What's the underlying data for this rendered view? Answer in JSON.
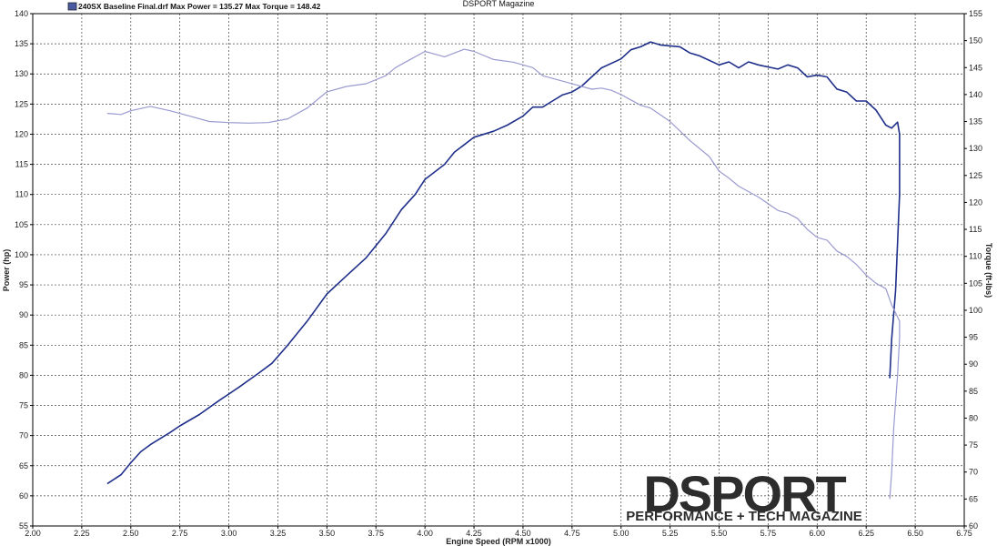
{
  "chart_data": {
    "type": "line",
    "title": "DSPORT Magazine",
    "legend_text": "240SX Baseline Final.drf Max Power = 135.27 Max Torque = 148.42",
    "legend_placement": "top-left",
    "xlabel": "Engine Speed (RPM x1000)",
    "ylabel": "Power (hp)",
    "y2label": "Torque (ft-lbs)",
    "xlim": [
      2.0,
      6.75
    ],
    "ylim": [
      55,
      140
    ],
    "y2lim": [
      60,
      155
    ],
    "x_ticks": [
      "2.00",
      "2.25",
      "2.50",
      "2.75",
      "3.00",
      "3.25",
      "3.50",
      "3.75",
      "4.00",
      "4.25",
      "4.50",
      "4.75",
      "5.00",
      "5.25",
      "5.50",
      "5.75",
      "6.00",
      "6.25",
      "6.50",
      "6.75"
    ],
    "y_ticks": [
      "55",
      "60",
      "65",
      "70",
      "75",
      "80",
      "85",
      "90",
      "95",
      "100",
      "105",
      "110",
      "115",
      "120",
      "125",
      "130",
      "135",
      "140"
    ],
    "y2_ticks": [
      "60",
      "65",
      "70",
      "75",
      "80",
      "85",
      "90",
      "95",
      "100",
      "105",
      "110",
      "115",
      "120",
      "125",
      "130",
      "135",
      "140",
      "145",
      "150",
      "155"
    ],
    "grid": true,
    "series": [
      {
        "axis": "left",
        "color": "#1f2f8a",
        "points": [
          [
            2.38,
            62.0
          ],
          [
            2.45,
            63.5
          ],
          [
            2.5,
            65.5
          ],
          [
            2.55,
            67.3
          ],
          [
            2.6,
            68.5
          ],
          [
            2.7,
            70.5
          ],
          [
            2.75,
            71.6
          ],
          [
            2.85,
            73.5
          ],
          [
            2.95,
            75.8
          ],
          [
            3.05,
            78.0
          ],
          [
            3.15,
            80.3
          ],
          [
            3.22,
            82.0
          ],
          [
            3.3,
            85.0
          ],
          [
            3.4,
            89.0
          ],
          [
            3.5,
            93.5
          ],
          [
            3.6,
            96.5
          ],
          [
            3.7,
            99.5
          ],
          [
            3.8,
            103.5
          ],
          [
            3.88,
            107.5
          ],
          [
            3.95,
            110.0
          ],
          [
            4.0,
            112.5
          ],
          [
            4.1,
            115.0
          ],
          [
            4.15,
            117.0
          ],
          [
            4.25,
            119.5
          ],
          [
            4.35,
            120.5
          ],
          [
            4.42,
            121.5
          ],
          [
            4.5,
            123.0
          ],
          [
            4.55,
            124.5
          ],
          [
            4.6,
            124.5
          ],
          [
            4.65,
            125.5
          ],
          [
            4.7,
            126.5
          ],
          [
            4.75,
            127.0
          ],
          [
            4.8,
            128.0
          ],
          [
            4.85,
            129.5
          ],
          [
            4.9,
            131.0
          ],
          [
            5.0,
            132.5
          ],
          [
            5.05,
            134.0
          ],
          [
            5.1,
            134.5
          ],
          [
            5.15,
            135.3
          ],
          [
            5.2,
            134.8
          ],
          [
            5.3,
            134.5
          ],
          [
            5.35,
            133.5
          ],
          [
            5.4,
            133.0
          ],
          [
            5.5,
            131.5
          ],
          [
            5.55,
            132.0
          ],
          [
            5.6,
            131.0
          ],
          [
            5.65,
            132.0
          ],
          [
            5.7,
            131.5
          ],
          [
            5.8,
            130.8
          ],
          [
            5.85,
            131.5
          ],
          [
            5.9,
            131.0
          ],
          [
            5.95,
            129.5
          ],
          [
            6.0,
            129.8
          ],
          [
            6.05,
            129.5
          ],
          [
            6.1,
            127.5
          ],
          [
            6.15,
            127.0
          ],
          [
            6.2,
            125.5
          ],
          [
            6.25,
            125.5
          ],
          [
            6.3,
            124.0
          ],
          [
            6.35,
            121.5
          ],
          [
            6.38,
            121.0
          ],
          [
            6.41,
            122.0
          ],
          [
            6.42,
            120.0
          ],
          [
            6.42,
            110.0
          ],
          [
            6.41,
            102.0
          ],
          [
            6.4,
            94.0
          ],
          [
            6.38,
            86.0
          ],
          [
            6.37,
            79.5
          ]
        ]
      },
      {
        "axis": "right",
        "color": "#9a9ad0",
        "points": [
          [
            2.38,
            136.5
          ],
          [
            2.45,
            136.3
          ],
          [
            2.5,
            137.0
          ],
          [
            2.6,
            137.8
          ],
          [
            2.7,
            137.0
          ],
          [
            2.8,
            136.0
          ],
          [
            2.9,
            135.0
          ],
          [
            3.0,
            134.8
          ],
          [
            3.1,
            134.7
          ],
          [
            3.2,
            134.8
          ],
          [
            3.3,
            135.5
          ],
          [
            3.4,
            137.5
          ],
          [
            3.5,
            140.5
          ],
          [
            3.6,
            141.5
          ],
          [
            3.7,
            142.0
          ],
          [
            3.8,
            143.5
          ],
          [
            3.85,
            145.0
          ],
          [
            3.9,
            146.0
          ],
          [
            4.0,
            148.0
          ],
          [
            4.05,
            147.5
          ],
          [
            4.1,
            147.0
          ],
          [
            4.2,
            148.4
          ],
          [
            4.25,
            148.0
          ],
          [
            4.35,
            146.5
          ],
          [
            4.45,
            146.0
          ],
          [
            4.5,
            145.5
          ],
          [
            4.55,
            145.0
          ],
          [
            4.6,
            143.5
          ],
          [
            4.7,
            142.5
          ],
          [
            4.8,
            141.5
          ],
          [
            4.85,
            141.0
          ],
          [
            4.9,
            141.2
          ],
          [
            4.95,
            140.8
          ],
          [
            5.0,
            140.0
          ],
          [
            5.05,
            139.0
          ],
          [
            5.1,
            138.0
          ],
          [
            5.15,
            137.5
          ],
          [
            5.25,
            135.0
          ],
          [
            5.35,
            131.5
          ],
          [
            5.45,
            128.5
          ],
          [
            5.5,
            125.8
          ],
          [
            5.55,
            124.5
          ],
          [
            5.6,
            123.0
          ],
          [
            5.7,
            121.0
          ],
          [
            5.8,
            118.5
          ],
          [
            5.85,
            118.0
          ],
          [
            5.9,
            117.0
          ],
          [
            5.95,
            115.0
          ],
          [
            6.0,
            113.5
          ],
          [
            6.05,
            113.0
          ],
          [
            6.1,
            111.0
          ],
          [
            6.15,
            110.0
          ],
          [
            6.2,
            108.5
          ],
          [
            6.25,
            106.5
          ],
          [
            6.3,
            105.0
          ],
          [
            6.35,
            104.0
          ],
          [
            6.38,
            101.0
          ],
          [
            6.4,
            99.5
          ],
          [
            6.42,
            98.0
          ],
          [
            6.42,
            95.0
          ],
          [
            6.41,
            88.0
          ],
          [
            6.39,
            78.0
          ],
          [
            6.38,
            70.0
          ],
          [
            6.37,
            65.0
          ]
        ]
      }
    ]
  },
  "logo": {
    "main": "DSPORT",
    "sub": "PERFORMANCE + TECH MAGAZINE"
  }
}
